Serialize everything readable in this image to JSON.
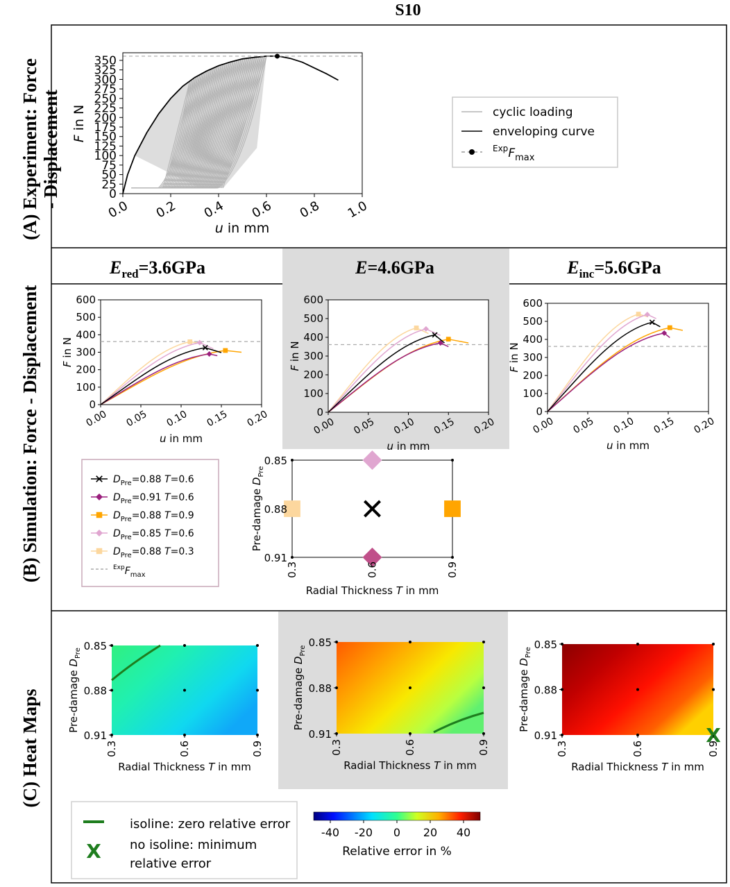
{
  "figure_title": "S10",
  "row_labels": {
    "a": "(A) Experiment: Force",
    "a2": "- Displacement",
    "b": "(B) Simulation: Force - Displacement",
    "c": "(C) Heat Maps"
  },
  "column_headers": [
    {
      "sym": "E",
      "sub": "red",
      "val": "=3.6GPa"
    },
    {
      "sym": "E",
      "sub": "",
      "val": "=4.6GPa"
    },
    {
      "sym": "E",
      "sub": "inc",
      "val": "=5.6GPa"
    }
  ],
  "colors": {
    "cyclic": "#b4b4b4",
    "envelope": "#000000",
    "fmax": "#aaaaaa",
    "s1": "#000000",
    "s2": "#9a1f7d",
    "s3": "#ffa500",
    "s4": "#e0a6d0",
    "s5": "#fcd79e",
    "isoline": "#1e7d1e",
    "panel_bg": "#dcdcdc"
  },
  "experiment": {
    "xlabel_var": "u",
    "xlabel_unit": " in mm",
    "ylabel_var": "F",
    "ylabel_unit": " in N",
    "x_ticks": [
      "0.0",
      "0.2",
      "0.4",
      "0.6",
      "0.8",
      "1.0"
    ],
    "y_ticks": [
      "0",
      "25",
      "50",
      "75",
      "100",
      "125",
      "150",
      "175",
      "200",
      "225",
      "250",
      "275",
      "300",
      "325",
      "350"
    ],
    "legend": {
      "cyclic": "cyclic loading",
      "envelope": "enveloping curve",
      "fmax_sup": "Exp",
      "fmax_var": "F",
      "fmax_sub": "max"
    }
  },
  "simulation": {
    "xlabel_var": "u",
    "xlabel_unit": " in mm",
    "ylabel_var": "F",
    "ylabel_unit": " in N",
    "x_ticks": [
      "0.00",
      "0.05",
      "0.10",
      "0.15",
      "0.20"
    ],
    "y_ticks": [
      "0",
      "100",
      "200",
      "300",
      "400",
      "500",
      "600"
    ],
    "legend": [
      {
        "var": "D",
        "sub": "Pre",
        "text": "=0.88 ",
        "tvar": "T",
        "tval": "=0.6"
      },
      {
        "var": "D",
        "sub": "Pre",
        "text": "=0.91 ",
        "tvar": "T",
        "tval": "=0.6"
      },
      {
        "var": "D",
        "sub": "Pre",
        "text": "=0.88 ",
        "tvar": "T",
        "tval": "=0.9"
      },
      {
        "var": "D",
        "sub": "Pre",
        "text": "=0.85 ",
        "tvar": "T",
        "tval": "=0.6"
      },
      {
        "var": "D",
        "sub": "Pre",
        "text": "=0.88 ",
        "tvar": "T",
        "tval": "=0.3"
      }
    ],
    "legend_fmax": {
      "sup": "Exp",
      "var": "F",
      "sub": "max"
    }
  },
  "grid": {
    "ylabel_pre": "Pre-damage ",
    "ylabel_var": "D",
    "ylabel_sub": "Pre",
    "xlabel_pre": "Radial Thickness ",
    "xlabel_var": "T",
    "xlabel_unit": " in mm",
    "x_ticks": [
      "0.3",
      "0.6",
      "0.9"
    ],
    "y_ticks": [
      "0.85",
      "0.88",
      "0.91"
    ]
  },
  "heatmap_legend": {
    "isoline": "isoline: zero relative error",
    "marker_symbol": "X",
    "nolabel1": "no isoline: minimum",
    "nolabel2": "relative error",
    "colorbar_ticks": [
      "-40",
      "-20",
      "0",
      "20",
      "40"
    ],
    "colorbar_label": "Relative error in %"
  },
  "chart_data": [
    {
      "type": "line",
      "title": "Experiment: Force - Displacement",
      "xlabel": "u in mm",
      "ylabel": "F in N",
      "xlim": [
        0,
        1.0
      ],
      "ylim": [
        0,
        370
      ],
      "series": [
        {
          "name": "enveloping curve",
          "x": [
            0,
            0.02,
            0.05,
            0.1,
            0.15,
            0.2,
            0.25,
            0.3,
            0.35,
            0.4,
            0.45,
            0.5,
            0.55,
            0.6,
            0.65,
            0.7,
            0.75,
            0.8,
            0.85,
            0.9
          ],
          "y": [
            0,
            50,
            100,
            160,
            210,
            250,
            282,
            305,
            322,
            336,
            346,
            354,
            358,
            361,
            361,
            355,
            345,
            330,
            315,
            298
          ]
        },
        {
          "name": "cyclic loading",
          "unloading_from_u": [
            0.28,
            0.6
          ],
          "unload_to_F": 15
        }
      ],
      "reference": {
        "name": "Exp Fmax",
        "x": 0.645,
        "y": 361
      }
    },
    {
      "type": "line",
      "title": "Ered=3.6GPa",
      "xlabel": "u in mm",
      "ylabel": "F in N",
      "xlim": [
        0,
        0.2
      ],
      "ylim": [
        0,
        600
      ],
      "fmax": 361,
      "series": [
        {
          "name": "DPre=0.88 T=0.6",
          "peak_x": 0.13,
          "peak_y": 326,
          "end_x": 0.15,
          "end_y": 298
        },
        {
          "name": "DPre=0.91 T=0.6",
          "peak_x": 0.135,
          "peak_y": 290,
          "end_x": 0.145,
          "end_y": 280
        },
        {
          "name": "DPre=0.88 T=0.9",
          "peak_x": 0.155,
          "peak_y": 310,
          "end_x": 0.175,
          "end_y": 300
        },
        {
          "name": "DPre=0.85 T=0.6",
          "peak_x": 0.123,
          "peak_y": 355,
          "end_x": 0.14,
          "end_y": 320
        },
        {
          "name": "DPre=0.88 T=0.3",
          "peak_x": 0.111,
          "peak_y": 360,
          "end_x": 0.125,
          "end_y": 350
        }
      ]
    },
    {
      "type": "line",
      "title": "E=4.6GPa",
      "xlabel": "u in mm",
      "ylabel": "F in N",
      "xlim": [
        0,
        0.2
      ],
      "ylim": [
        0,
        600
      ],
      "fmax": 361,
      "series": [
        {
          "name": "DPre=0.88 T=0.6",
          "peak_x": 0.133,
          "peak_y": 413,
          "end_x": 0.145,
          "end_y": 370
        },
        {
          "name": "DPre=0.91 T=0.6",
          "peak_x": 0.14,
          "peak_y": 370,
          "end_x": 0.15,
          "end_y": 350
        },
        {
          "name": "DPre=0.88 T=0.9",
          "peak_x": 0.15,
          "peak_y": 390,
          "end_x": 0.175,
          "end_y": 370
        },
        {
          "name": "DPre=0.85 T=0.6",
          "peak_x": 0.122,
          "peak_y": 445,
          "end_x": 0.14,
          "end_y": 410
        },
        {
          "name": "DPre=0.88 T=0.3",
          "peak_x": 0.11,
          "peak_y": 450,
          "end_x": 0.125,
          "end_y": 420
        }
      ]
    },
    {
      "type": "line",
      "title": "Einc=5.6GPa",
      "xlabel": "u in mm",
      "ylabel": "F in N",
      "xlim": [
        0,
        0.2
      ],
      "ylim": [
        0,
        600
      ],
      "fmax": 361,
      "series": [
        {
          "name": "DPre=0.88 T=0.6",
          "peak_x": 0.13,
          "peak_y": 495,
          "end_x": 0.14,
          "end_y": 470
        },
        {
          "name": "DPre=0.91 T=0.6",
          "peak_x": 0.145,
          "peak_y": 435,
          "end_x": 0.152,
          "end_y": 410
        },
        {
          "name": "DPre=0.88 T=0.9",
          "peak_x": 0.152,
          "peak_y": 465,
          "end_x": 0.168,
          "end_y": 450
        },
        {
          "name": "DPre=0.85 T=0.6",
          "peak_x": 0.124,
          "peak_y": 538,
          "end_x": 0.135,
          "end_y": 515
        },
        {
          "name": "DPre=0.88 T=0.3",
          "peak_x": 0.113,
          "peak_y": 540,
          "end_x": 0.125,
          "end_y": 525
        }
      ]
    },
    {
      "type": "heatmap",
      "title": "Relative error, Ered=3.6GPa",
      "x": [
        0.3,
        0.6,
        0.9
      ],
      "y": [
        0.85,
        0.88,
        0.91
      ],
      "values": [
        [
          -5,
          -15,
          -20
        ],
        [
          -10,
          -20,
          -25
        ],
        [
          -20,
          -25,
          -30
        ]
      ],
      "isoline": true,
      "colorbar_range": [
        -50,
        50
      ]
    },
    {
      "type": "heatmap",
      "title": "Relative error, E=4.6GPa",
      "x": [
        0.3,
        0.6,
        0.9
      ],
      "y": [
        0.85,
        0.88,
        0.91
      ],
      "values": [
        [
          30,
          22,
          15
        ],
        [
          22,
          15,
          8
        ],
        [
          12,
          5,
          0
        ]
      ],
      "isoline": true,
      "colorbar_range": [
        -50,
        50
      ]
    },
    {
      "type": "heatmap",
      "title": "Relative error, Einc=5.6GPa",
      "x": [
        0.3,
        0.6,
        0.9
      ],
      "y": [
        0.85,
        0.88,
        0.91
      ],
      "values": [
        [
          48,
          44,
          38
        ],
        [
          40,
          35,
          30
        ],
        [
          34,
          28,
          22
        ]
      ],
      "isoline": false,
      "minimum": {
        "T": 0.9,
        "DPre": 0.91
      },
      "colorbar_range": [
        -50,
        50
      ]
    }
  ]
}
